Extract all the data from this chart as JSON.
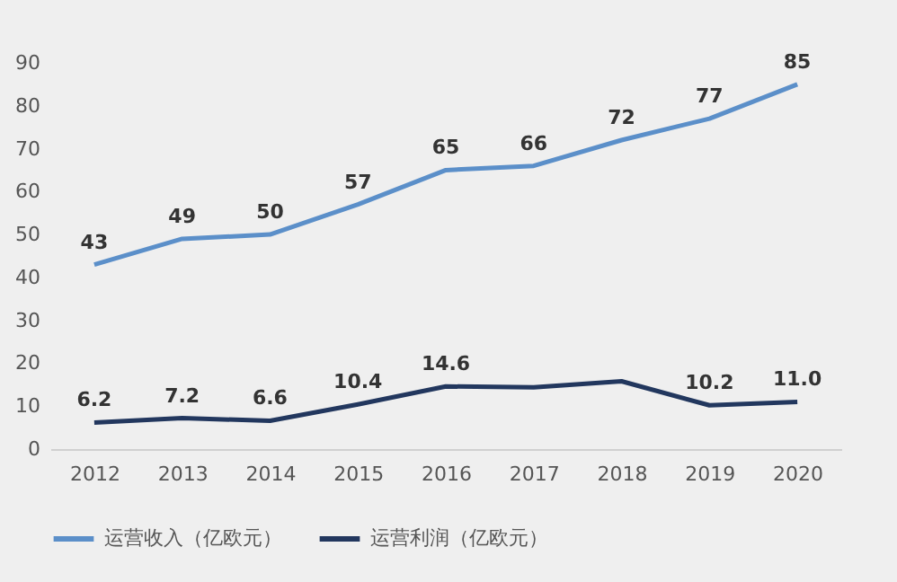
{
  "chart_data": {
    "type": "line",
    "categories": [
      "2012",
      "2013",
      "2014",
      "2015",
      "2016",
      "2017",
      "2018",
      "2019",
      "2020"
    ],
    "series": [
      {
        "name": "运营收入（亿欧元）",
        "color": "#5b8fc9",
        "values": [
          43,
          49,
          50,
          57,
          65,
          66,
          72,
          77,
          85
        ],
        "value_labels": [
          "43",
          "49",
          "50",
          "57",
          "65",
          "66",
          "72",
          "77",
          "85"
        ]
      },
      {
        "name": "运营利润（亿欧元）",
        "color": "#22375e",
        "values": [
          6.2,
          7.2,
          6.6,
          10.4,
          14.6,
          14.4,
          15.8,
          10.2,
          11.0
        ],
        "value_labels": [
          "6.2",
          "7.2",
          "6.6",
          "10.4",
          "14.6",
          null,
          null,
          "10.2",
          "11.0"
        ]
      }
    ],
    "ylim": [
      0,
      90
    ],
    "yticks": [
      0,
      10,
      20,
      30,
      40,
      50,
      60,
      70,
      80,
      90
    ],
    "grid": false,
    "legend": "bottom",
    "marker": "none",
    "line_style": "solid"
  }
}
